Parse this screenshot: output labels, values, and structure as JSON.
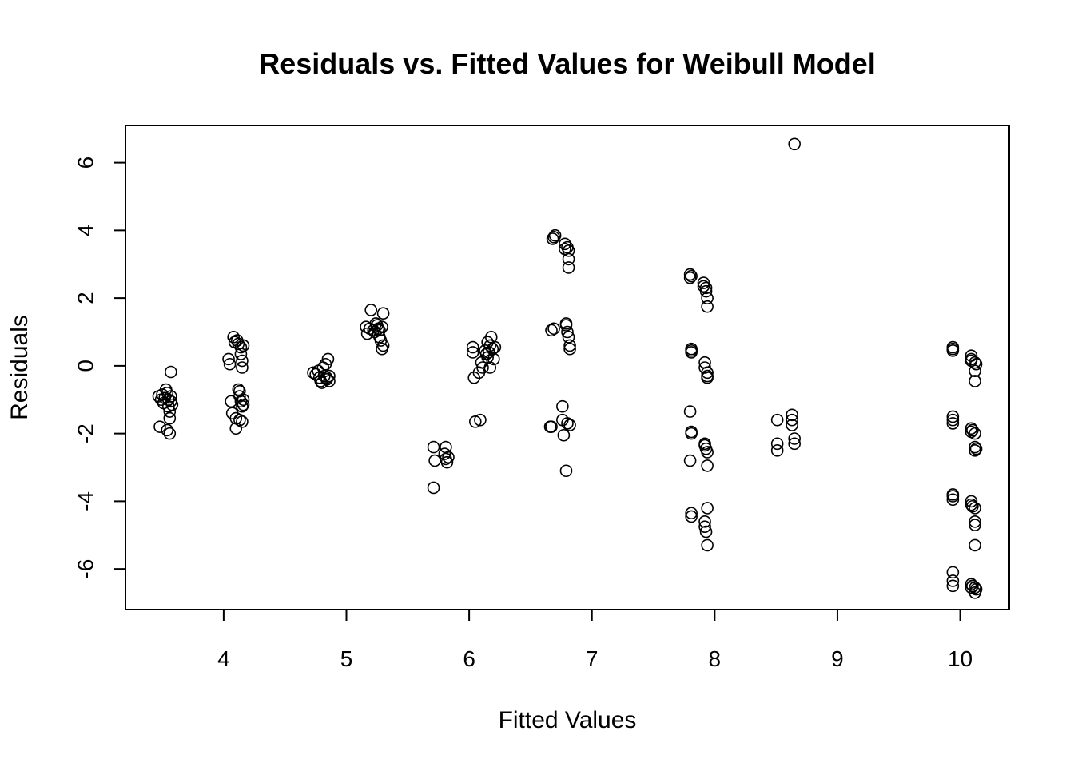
{
  "chart_data": {
    "type": "scatter",
    "title": "Residuals vs. Fitted Values for Weibull Model",
    "xlabel": "Fitted Values",
    "ylabel": "Residuals",
    "xlim": [
      3.2,
      10.4
    ],
    "ylim": [
      -7.2,
      7.1
    ],
    "x_ticks": [
      4,
      5,
      6,
      7,
      8,
      9,
      10
    ],
    "y_ticks": [
      6,
      4,
      2,
      0,
      -2,
      -4,
      -6
    ],
    "x_tick_labels": [
      "4",
      "5",
      "6",
      "7",
      "8",
      "9",
      "10"
    ],
    "y_tick_labels": [
      "6",
      "4",
      "2",
      "0",
      "-2",
      "-4",
      "-6"
    ],
    "grid": false,
    "marker": "open-circle",
    "points": [
      [
        3.47,
        -0.9
      ],
      [
        3.49,
        -1.0
      ],
      [
        3.5,
        -0.85
      ],
      [
        3.51,
        -1.1
      ],
      [
        3.52,
        -0.95
      ],
      [
        3.53,
        -0.7
      ],
      [
        3.54,
        -0.8
      ],
      [
        3.55,
        -1.2
      ],
      [
        3.55,
        -1.0
      ],
      [
        3.56,
        -1.35
      ],
      [
        3.56,
        -1.55
      ],
      [
        3.57,
        -0.9
      ],
      [
        3.57,
        -1.05
      ],
      [
        3.58,
        -1.15
      ],
      [
        3.48,
        -1.8
      ],
      [
        3.54,
        -1.9
      ],
      [
        3.56,
        -2.0
      ],
      [
        3.57,
        -0.18
      ],
      [
        4.04,
        0.2
      ],
      [
        4.05,
        0.05
      ],
      [
        4.06,
        -1.05
      ],
      [
        4.07,
        -1.4
      ],
      [
        4.08,
        0.85
      ],
      [
        4.09,
        0.7
      ],
      [
        4.1,
        -1.85
      ],
      [
        4.1,
        -1.55
      ],
      [
        4.11,
        0.75
      ],
      [
        4.12,
        0.65
      ],
      [
        4.12,
        -0.7
      ],
      [
        4.13,
        -0.9
      ],
      [
        4.13,
        -1.6
      ],
      [
        4.14,
        0.55
      ],
      [
        4.14,
        0.35
      ],
      [
        4.14,
        -1.05
      ],
      [
        4.15,
        0.15
      ],
      [
        4.15,
        -0.05
      ],
      [
        4.15,
        -1.2
      ],
      [
        4.16,
        0.6
      ],
      [
        4.16,
        -1.0
      ],
      [
        4.16,
        -1.15
      ],
      [
        4.15,
        -1.65
      ],
      [
        4.13,
        -0.75
      ],
      [
        4.73,
        -0.2
      ],
      [
        4.75,
        -0.25
      ],
      [
        4.77,
        -0.15
      ],
      [
        4.78,
        -0.35
      ],
      [
        4.79,
        -0.45
      ],
      [
        4.8,
        -0.5
      ],
      [
        4.81,
        -0.05
      ],
      [
        4.82,
        -0.3
      ],
      [
        4.83,
        0.05
      ],
      [
        4.84,
        -0.4
      ],
      [
        4.84,
        -0.35
      ],
      [
        4.85,
        0.2
      ],
      [
        4.86,
        -0.45
      ],
      [
        4.86,
        -0.3
      ],
      [
        5.16,
        1.15
      ],
      [
        5.17,
        0.95
      ],
      [
        5.19,
        1.1
      ],
      [
        5.2,
        1.65
      ],
      [
        5.22,
        1.05
      ],
      [
        5.23,
        1.0
      ],
      [
        5.24,
        1.25
      ],
      [
        5.25,
        1.2
      ],
      [
        5.26,
        1.1
      ],
      [
        5.27,
        0.85
      ],
      [
        5.27,
        1.05
      ],
      [
        5.28,
        0.75
      ],
      [
        5.29,
        1.15
      ],
      [
        5.29,
        0.5
      ],
      [
        5.3,
        0.6
      ],
      [
        5.3,
        1.55
      ],
      [
        5.71,
        -2.4
      ],
      [
        5.72,
        -2.8
      ],
      [
        5.71,
        -3.6
      ],
      [
        5.8,
        -2.6
      ],
      [
        5.81,
        -2.75
      ],
      [
        5.81,
        -2.4
      ],
      [
        5.82,
        -2.85
      ],
      [
        5.83,
        -2.7
      ],
      [
        6.03,
        0.55
      ],
      [
        6.03,
        0.4
      ],
      [
        6.04,
        -0.35
      ],
      [
        6.05,
        -1.65
      ],
      [
        6.08,
        -0.2
      ],
      [
        6.09,
        -1.6
      ],
      [
        6.1,
        0.1
      ],
      [
        6.11,
        -0.05
      ],
      [
        6.13,
        0.45
      ],
      [
        6.14,
        0.35
      ],
      [
        6.15,
        0.7
      ],
      [
        6.15,
        0.25
      ],
      [
        6.16,
        0.4
      ],
      [
        6.17,
        0.6
      ],
      [
        6.17,
        -0.05
      ],
      [
        6.18,
        0.85
      ],
      [
        6.19,
        0.5
      ],
      [
        6.2,
        0.2
      ],
      [
        6.21,
        0.55
      ],
      [
        6.67,
        1.05
      ],
      [
        6.68,
        3.75
      ],
      [
        6.69,
        3.8
      ],
      [
        6.7,
        3.85
      ],
      [
        6.69,
        1.1
      ],
      [
        6.67,
        -1.8
      ],
      [
        6.66,
        -1.8
      ],
      [
        6.76,
        -1.2
      ],
      [
        6.76,
        -1.6
      ],
      [
        6.77,
        -2.05
      ],
      [
        6.78,
        3.6
      ],
      [
        6.78,
        3.45
      ],
      [
        6.79,
        1.2
      ],
      [
        6.79,
        1.25
      ],
      [
        6.79,
        -3.1
      ],
      [
        6.8,
        3.5
      ],
      [
        6.8,
        1.0
      ],
      [
        6.8,
        -1.7
      ],
      [
        6.81,
        3.4
      ],
      [
        6.81,
        3.15
      ],
      [
        6.81,
        2.9
      ],
      [
        6.81,
        0.85
      ],
      [
        6.82,
        0.6
      ],
      [
        6.82,
        0.5
      ],
      [
        6.82,
        -1.75
      ],
      [
        7.8,
        2.7
      ],
      [
        7.8,
        2.6
      ],
      [
        7.81,
        2.65
      ],
      [
        7.81,
        0.5
      ],
      [
        7.81,
        0.45
      ],
      [
        7.81,
        0.4
      ],
      [
        7.8,
        -1.35
      ],
      [
        7.81,
        -1.95
      ],
      [
        7.81,
        -2.0
      ],
      [
        7.8,
        -2.8
      ],
      [
        7.81,
        -4.35
      ],
      [
        7.81,
        -4.45
      ],
      [
        7.91,
        2.45
      ],
      [
        7.91,
        2.35
      ],
      [
        7.92,
        0.1
      ],
      [
        7.92,
        -0.05
      ],
      [
        7.92,
        -2.3
      ],
      [
        7.92,
        -2.35
      ],
      [
        7.92,
        -4.6
      ],
      [
        7.92,
        -4.75
      ],
      [
        7.93,
        2.3
      ],
      [
        7.93,
        2.2
      ],
      [
        7.93,
        -2.45
      ],
      [
        7.93,
        -4.9
      ],
      [
        7.94,
        2.0
      ],
      [
        7.94,
        1.75
      ],
      [
        7.94,
        -0.2
      ],
      [
        7.94,
        -0.3
      ],
      [
        7.94,
        -0.35
      ],
      [
        7.94,
        -2.55
      ],
      [
        7.94,
        -2.95
      ],
      [
        7.94,
        -4.2
      ],
      [
        7.94,
        -5.3
      ],
      [
        8.51,
        -1.6
      ],
      [
        8.51,
        -2.3
      ],
      [
        8.51,
        -2.5
      ],
      [
        8.63,
        -1.45
      ],
      [
        8.63,
        -1.6
      ],
      [
        8.63,
        -1.75
      ],
      [
        8.65,
        -2.15
      ],
      [
        8.65,
        -2.3
      ],
      [
        8.65,
        6.55
      ],
      [
        9.94,
        0.55
      ],
      [
        9.94,
        0.5
      ],
      [
        9.94,
        0.45
      ],
      [
        9.94,
        -1.5
      ],
      [
        9.94,
        -1.6
      ],
      [
        9.94,
        -1.7
      ],
      [
        9.94,
        -3.8
      ],
      [
        9.94,
        -3.85
      ],
      [
        9.94,
        -3.95
      ],
      [
        9.94,
        -6.1
      ],
      [
        9.94,
        -6.35
      ],
      [
        9.94,
        -6.5
      ],
      [
        10.09,
        0.3
      ],
      [
        10.09,
        0.2
      ],
      [
        10.09,
        0.15
      ],
      [
        10.09,
        -1.85
      ],
      [
        10.09,
        -1.95
      ],
      [
        10.09,
        -4.0
      ],
      [
        10.09,
        -4.1
      ],
      [
        10.09,
        -6.45
      ],
      [
        10.09,
        -6.55
      ],
      [
        10.1,
        -1.9
      ],
      [
        10.1,
        -4.15
      ],
      [
        10.1,
        -6.5
      ],
      [
        10.12,
        0.1
      ],
      [
        10.12,
        -0.15
      ],
      [
        10.12,
        -0.45
      ],
      [
        10.12,
        -2.0
      ],
      [
        10.12,
        -2.4
      ],
      [
        10.12,
        -2.5
      ],
      [
        10.12,
        -4.2
      ],
      [
        10.12,
        -4.6
      ],
      [
        10.12,
        -4.7
      ],
      [
        10.12,
        -5.3
      ],
      [
        10.12,
        -6.55
      ],
      [
        10.12,
        -6.7
      ],
      [
        10.13,
        0.05
      ],
      [
        10.13,
        -2.45
      ],
      [
        10.13,
        -6.6
      ]
    ]
  }
}
